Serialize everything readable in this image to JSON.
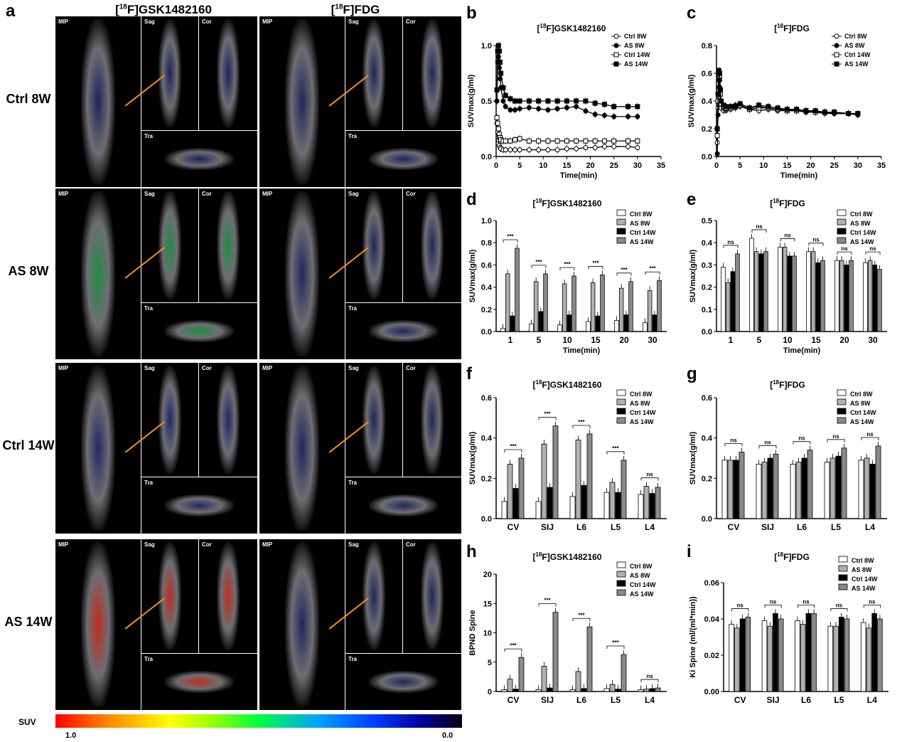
{
  "panel_a": {
    "letter": "a",
    "columns": [
      "[18F]GSK1482160",
      "[18F]FDG"
    ],
    "rows": [
      "Ctrl 8W",
      "AS 8W",
      "Ctrl 14W",
      "AS 14W"
    ],
    "tile_labels": {
      "mip": "MIP",
      "sag": "Sag",
      "cor": "Cor",
      "tra": "Tra"
    },
    "colorbar": {
      "label": "SUV",
      "min": "0.0",
      "max": "1.0"
    }
  },
  "legend_common": [
    "Ctrl 8W",
    "AS 8W",
    "Ctrl 14W",
    "AS 14W"
  ],
  "chart_data": [
    {
      "id": "b",
      "type": "line",
      "title": "[18F]GSK1482160",
      "xlabel": "Time(min)",
      "ylabel": "SUVmax(g/ml)",
      "xlim": [
        0,
        35
      ],
      "ylim": [
        0,
        1.0
      ],
      "xticks": [
        0,
        5,
        10,
        15,
        20,
        25,
        30,
        35
      ],
      "yticks": [
        0.0,
        0.5,
        1.0
      ],
      "x": [
        0.17,
        0.33,
        0.5,
        0.67,
        0.83,
        1,
        1.5,
        2,
        3,
        4,
        5,
        7,
        9,
        11,
        13,
        15,
        17,
        19,
        21,
        23,
        25,
        28,
        30
      ],
      "series": [
        {
          "name": "Ctrl 8W",
          "values": [
            0.3,
            0.22,
            0.15,
            0.1,
            0.08,
            0.07,
            0.06,
            0.06,
            0.06,
            0.06,
            0.06,
            0.06,
            0.06,
            0.06,
            0.06,
            0.07,
            0.07,
            0.08,
            0.08,
            0.09,
            0.09,
            0.09,
            0.08
          ]
        },
        {
          "name": "AS 8W",
          "values": [
            0.5,
            0.85,
            0.9,
            0.8,
            0.7,
            0.62,
            0.5,
            0.45,
            0.42,
            0.42,
            0.43,
            0.44,
            0.43,
            0.42,
            0.43,
            0.44,
            0.45,
            0.41,
            0.38,
            0.37,
            0.36,
            0.36,
            0.36
          ]
        },
        {
          "name": "Ctrl 14W",
          "values": [
            0.35,
            0.3,
            0.25,
            0.2,
            0.17,
            0.15,
            0.14,
            0.14,
            0.14,
            0.15,
            0.16,
            0.14,
            0.14,
            0.14,
            0.14,
            0.14,
            0.14,
            0.14,
            0.14,
            0.14,
            0.14,
            0.14,
            0.14
          ]
        },
        {
          "name": "AS 14W",
          "values": [
            0.6,
            0.95,
            1.0,
            0.95,
            0.85,
            0.75,
            0.62,
            0.55,
            0.52,
            0.5,
            0.5,
            0.5,
            0.5,
            0.5,
            0.5,
            0.5,
            0.5,
            0.5,
            0.48,
            0.47,
            0.45,
            0.45,
            0.45
          ]
        }
      ]
    },
    {
      "id": "c",
      "type": "line",
      "title": "[18F]FDG",
      "xlabel": "Time(min)",
      "ylabel": "SUVmax(g/ml)",
      "xlim": [
        0,
        35
      ],
      "ylim": [
        0,
        0.8
      ],
      "xticks": [
        0,
        5,
        10,
        15,
        20,
        25,
        30,
        35
      ],
      "yticks": [
        0.0,
        0.2,
        0.4,
        0.6,
        0.8
      ],
      "x": [
        0.17,
        0.33,
        0.5,
        0.67,
        0.83,
        1,
        1.5,
        2,
        3,
        4,
        5,
        7,
        9,
        11,
        13,
        15,
        17,
        19,
        21,
        23,
        25,
        28,
        30
      ],
      "series": [
        {
          "name": "Ctrl 8W",
          "values": [
            0.1,
            0.35,
            0.55,
            0.5,
            0.4,
            0.35,
            0.33,
            0.33,
            0.34,
            0.35,
            0.36,
            0.34,
            0.33,
            0.34,
            0.33,
            0.33,
            0.33,
            0.32,
            0.32,
            0.31,
            0.31,
            0.31,
            0.3
          ]
        },
        {
          "name": "AS 8W",
          "values": [
            0.02,
            0.3,
            0.5,
            0.55,
            0.45,
            0.38,
            0.35,
            0.34,
            0.36,
            0.37,
            0.38,
            0.35,
            0.36,
            0.35,
            0.34,
            0.34,
            0.33,
            0.32,
            0.32,
            0.32,
            0.31,
            0.31,
            0.3
          ]
        },
        {
          "name": "Ctrl 14W",
          "values": [
            0.15,
            0.4,
            0.6,
            0.58,
            0.45,
            0.38,
            0.36,
            0.35,
            0.35,
            0.36,
            0.37,
            0.34,
            0.35,
            0.35,
            0.34,
            0.33,
            0.33,
            0.33,
            0.32,
            0.32,
            0.32,
            0.31,
            0.31
          ]
        },
        {
          "name": "AS 14W",
          "values": [
            0.2,
            0.45,
            0.62,
            0.6,
            0.48,
            0.4,
            0.37,
            0.36,
            0.36,
            0.36,
            0.38,
            0.35,
            0.37,
            0.36,
            0.35,
            0.34,
            0.34,
            0.33,
            0.33,
            0.32,
            0.32,
            0.31,
            0.31
          ]
        }
      ]
    },
    {
      "id": "d",
      "type": "bar",
      "title": "[18F]GSK1482160",
      "xlabel": "Time(min)",
      "ylabel": "SUVmax(g/ml)",
      "ylim": [
        0,
        1.0
      ],
      "yticks": [
        0.0,
        0.2,
        0.4,
        0.6,
        0.8,
        1.0
      ],
      "categories": [
        "1",
        "5",
        "10",
        "15",
        "20",
        "30"
      ],
      "series": [
        {
          "name": "Ctrl 8W",
          "values": [
            0.03,
            0.07,
            0.06,
            0.09,
            0.1,
            0.08
          ]
        },
        {
          "name": "AS 8W",
          "values": [
            0.52,
            0.45,
            0.43,
            0.44,
            0.39,
            0.37
          ]
        },
        {
          "name": "Ctrl 14W",
          "values": [
            0.14,
            0.18,
            0.15,
            0.14,
            0.15,
            0.15
          ]
        },
        {
          "name": "AS 14W",
          "values": [
            0.75,
            0.52,
            0.5,
            0.51,
            0.45,
            0.46
          ]
        }
      ],
      "significance": [
        "***",
        "***",
        "***",
        "***",
        "***",
        "***"
      ]
    },
    {
      "id": "e",
      "type": "bar",
      "title": "[18F]FDG",
      "xlabel": "Time(min)",
      "ylabel": "SUVmax(g/ml)",
      "ylim": [
        0,
        0.5
      ],
      "yticks": [
        0.0,
        0.1,
        0.2,
        0.3,
        0.4,
        0.5
      ],
      "categories": [
        "1",
        "5",
        "10",
        "15",
        "20",
        "30"
      ],
      "series": [
        {
          "name": "Ctrl 8W",
          "values": [
            0.29,
            0.42,
            0.38,
            0.36,
            0.32,
            0.31
          ]
        },
        {
          "name": "AS 8W",
          "values": [
            0.22,
            0.36,
            0.38,
            0.36,
            0.32,
            0.32
          ]
        },
        {
          "name": "Ctrl 14W",
          "values": [
            0.27,
            0.35,
            0.34,
            0.31,
            0.3,
            0.3
          ]
        },
        {
          "name": "AS 14W",
          "values": [
            0.35,
            0.36,
            0.34,
            0.32,
            0.32,
            0.28
          ]
        }
      ],
      "significance": [
        "ns",
        "ns",
        "ns",
        "ns",
        "ns",
        "ns"
      ]
    },
    {
      "id": "f",
      "type": "bar",
      "title": "[18F]GSK1482160",
      "xlabel": "",
      "ylabel": "SUVmax(g/ml)",
      "ylim": [
        0,
        0.6
      ],
      "yticks": [
        0.0,
        0.2,
        0.4,
        0.6
      ],
      "categories": [
        "CV",
        "SIJ",
        "L6",
        "L5",
        "L4"
      ],
      "series": [
        {
          "name": "Ctrl 8W",
          "values": [
            0.085,
            0.085,
            0.11,
            0.13,
            0.12
          ]
        },
        {
          "name": "AS 8W",
          "values": [
            0.27,
            0.37,
            0.39,
            0.18,
            0.16
          ]
        },
        {
          "name": "Ctrl 14W",
          "values": [
            0.15,
            0.155,
            0.165,
            0.13,
            0.125
          ]
        },
        {
          "name": "AS 14W",
          "values": [
            0.3,
            0.46,
            0.42,
            0.29,
            0.155
          ]
        }
      ],
      "significance": [
        "***",
        "***",
        "***",
        "***",
        "ns"
      ]
    },
    {
      "id": "g",
      "type": "bar",
      "title": "[18F]FDG",
      "xlabel": "",
      "ylabel": "SUVmax(g/ml)",
      "ylim": [
        0,
        0.6
      ],
      "yticks": [
        0.0,
        0.2,
        0.4,
        0.6
      ],
      "categories": [
        "CV",
        "SIJ",
        "L6",
        "L5",
        "L4"
      ],
      "series": [
        {
          "name": "Ctrl 8W",
          "values": [
            0.29,
            0.27,
            0.27,
            0.28,
            0.29
          ]
        },
        {
          "name": "AS 8W",
          "values": [
            0.29,
            0.28,
            0.28,
            0.3,
            0.3
          ]
        },
        {
          "name": "Ctrl 14W",
          "values": [
            0.29,
            0.3,
            0.3,
            0.31,
            0.27
          ]
        },
        {
          "name": "AS 14W",
          "values": [
            0.33,
            0.32,
            0.34,
            0.35,
            0.36
          ]
        }
      ],
      "significance": [
        "ns",
        "ns",
        "ns",
        "ns",
        "ns"
      ]
    },
    {
      "id": "h",
      "type": "bar",
      "title": "[18F]GSK1482160",
      "xlabel": "",
      "ylabel": "BPND Spine",
      "ylim": [
        0,
        20
      ],
      "yticks": [
        0,
        5,
        10,
        15,
        20
      ],
      "categories": [
        "CV",
        "SIJ",
        "L6",
        "L5",
        "L4"
      ],
      "series": [
        {
          "name": "Ctrl 8W",
          "values": [
            0.3,
            0.3,
            0.3,
            0.5,
            0.3
          ]
        },
        {
          "name": "AS 8W",
          "values": [
            2.1,
            4.3,
            3.4,
            1.2,
            0.4
          ]
        },
        {
          "name": "Ctrl 14W",
          "values": [
            0.4,
            0.6,
            0.5,
            0.4,
            0.5
          ]
        },
        {
          "name": "AS 14W",
          "values": [
            5.8,
            13.5,
            11.0,
            6.3,
            0.6
          ]
        }
      ],
      "significance": [
        "***",
        "***",
        "***",
        "***",
        "ns"
      ]
    },
    {
      "id": "i",
      "type": "bar",
      "title": "[18F]FDG",
      "xlabel": "",
      "ylabel": "Ki Spine (ml/(ml*min))",
      "ylim": [
        0,
        0.06
      ],
      "yticks": [
        0.0,
        0.02,
        0.04,
        0.06
      ],
      "categories": [
        "CV",
        "SIJ",
        "L6",
        "L5",
        "L4"
      ],
      "series": [
        {
          "name": "Ctrl 8W",
          "values": [
            0.037,
            0.039,
            0.039,
            0.036,
            0.038
          ]
        },
        {
          "name": "AS 8W",
          "values": [
            0.035,
            0.036,
            0.037,
            0.036,
            0.035
          ]
        },
        {
          "name": "Ctrl 14W",
          "values": [
            0.04,
            0.043,
            0.043,
            0.041,
            0.043
          ]
        },
        {
          "name": "AS 14W",
          "values": [
            0.041,
            0.04,
            0.043,
            0.04,
            0.04
          ]
        }
      ],
      "significance": [
        "ns",
        "ns",
        "ns",
        "ns",
        "ns"
      ]
    }
  ]
}
